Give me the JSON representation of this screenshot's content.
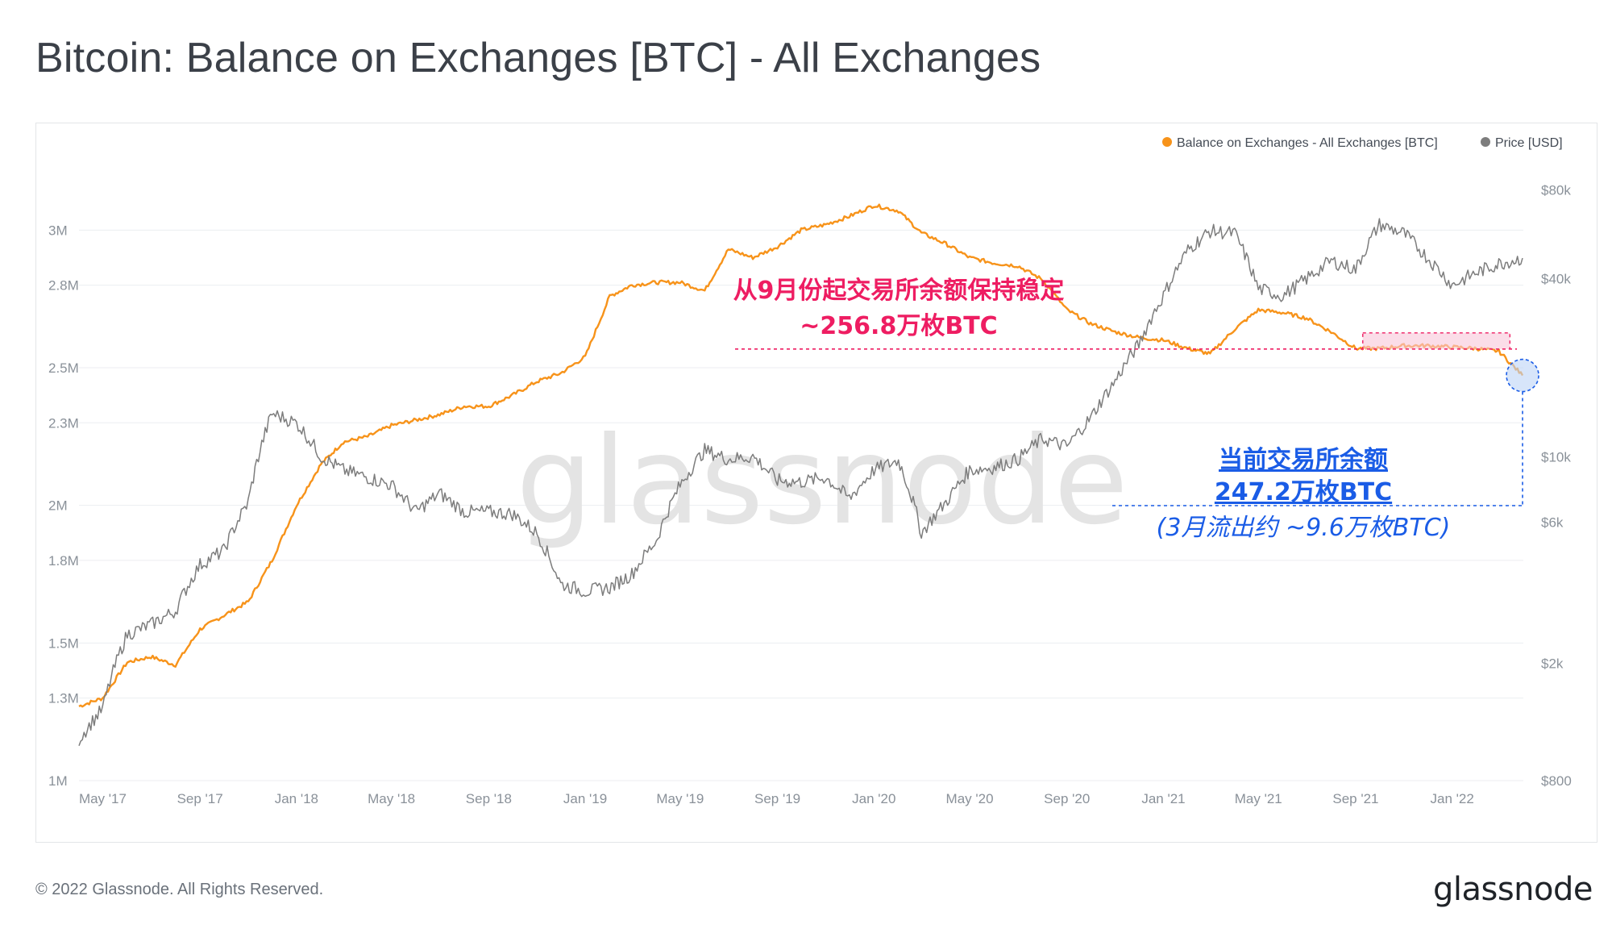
{
  "title": "Bitcoin: Balance on Exchanges [BTC] - All Exchanges",
  "footer": "© 2022 Glassnode. All Rights Reserved.",
  "brand": "glassnode",
  "watermark": "glassnode",
  "legend": [
    {
      "label": "Balance on Exchanges - All Exchanges [BTC]",
      "color": "#f7931a"
    },
    {
      "label": "Price [USD]",
      "color": "#7d7d7d"
    }
  ],
  "annotations": {
    "red_line1": "从9月份起交易所余额保持稳定",
    "red_line2": "~256.8万枚BTC",
    "blue_line1": "当前交易所余额",
    "blue_line2": "247.2万枚BTC",
    "blue_line3": "(3月流出约 ~9.6万枚BTC)",
    "red_color": "#ee1d62",
    "blue_color": "#1a5ce6"
  },
  "chart_data": {
    "type": "line",
    "x_tick_labels": [
      "May '17",
      "Sep '17",
      "Jan '18",
      "May '18",
      "Sep '18",
      "Jan '19",
      "May '19",
      "Sep '19",
      "Jan '20",
      "May '20",
      "Sep '20",
      "Jan '21",
      "May '21",
      "Sep '21",
      "Jan '22"
    ],
    "y_left_tick_labels": [
      "1M",
      "1.3M",
      "1.5M",
      "1.8M",
      "2M",
      "2.3M",
      "2.5M",
      "2.8M",
      "3M"
    ],
    "y_right_tick_labels": [
      "$800",
      "$2k",
      "$6k",
      "$10k",
      "$40k",
      "$80k"
    ],
    "y_left_range": [
      1000000,
      3250000
    ],
    "y_right_scale": "log",
    "y_right_range": [
      800,
      100000
    ],
    "series": [
      {
        "name": "Balance on Exchanges - All Exchanges [BTC]",
        "axis": "left",
        "color": "#f7931a",
        "x": [
          "2017-04-01",
          "2017-05-01",
          "2017-06-01",
          "2017-07-01",
          "2017-08-01",
          "2017-09-01",
          "2017-10-01",
          "2017-11-01",
          "2017-12-01",
          "2018-01-01",
          "2018-02-01",
          "2018-03-01",
          "2018-04-01",
          "2018-05-01",
          "2018-06-01",
          "2018-07-01",
          "2018-08-01",
          "2018-09-01",
          "2018-10-01",
          "2018-11-01",
          "2018-12-01",
          "2019-01-01",
          "2019-02-01",
          "2019-03-01",
          "2019-04-01",
          "2019-05-01",
          "2019-06-01",
          "2019-07-01",
          "2019-08-01",
          "2019-09-01",
          "2019-10-01",
          "2019-11-01",
          "2019-12-01",
          "2020-01-01",
          "2020-02-01",
          "2020-03-01",
          "2020-04-01",
          "2020-05-01",
          "2020-06-01",
          "2020-07-01",
          "2020-08-01",
          "2020-09-01",
          "2020-10-01",
          "2020-11-01",
          "2020-12-01",
          "2021-01-01",
          "2021-02-01",
          "2021-03-01",
          "2021-04-01",
          "2021-05-01",
          "2021-06-01",
          "2021-07-01",
          "2021-08-01",
          "2021-09-01",
          "2021-10-01",
          "2021-11-01",
          "2021-12-01",
          "2022-01-01",
          "2022-02-01",
          "2022-03-01",
          "2022-03-31"
        ],
        "values": [
          1270000,
          1300000,
          1430000,
          1450000,
          1420000,
          1550000,
          1600000,
          1650000,
          1800000,
          2000000,
          2150000,
          2230000,
          2250000,
          2290000,
          2310000,
          2330000,
          2360000,
          2360000,
          2400000,
          2450000,
          2480000,
          2540000,
          2760000,
          2800000,
          2810000,
          2810000,
          2780000,
          2930000,
          2900000,
          2940000,
          3000000,
          3020000,
          3050000,
          3090000,
          3070000,
          2990000,
          2950000,
          2900000,
          2880000,
          2870000,
          2820000,
          2710000,
          2660000,
          2630000,
          2610000,
          2600000,
          2570000,
          2550000,
          2640000,
          2710000,
          2700000,
          2680000,
          2630000,
          2570000,
          2570000,
          2580000,
          2580000,
          2575000,
          2570000,
          2560000,
          2472000
        ]
      },
      {
        "name": "Price [USD]",
        "axis": "right",
        "color": "#7d7d7d",
        "x": [
          "2017-04-01",
          "2017-05-01",
          "2017-06-01",
          "2017-07-01",
          "2017-08-01",
          "2017-09-01",
          "2017-10-01",
          "2017-11-01",
          "2017-12-01",
          "2018-01-01",
          "2018-02-01",
          "2018-03-01",
          "2018-04-01",
          "2018-05-01",
          "2018-06-01",
          "2018-07-01",
          "2018-08-01",
          "2018-09-01",
          "2018-10-01",
          "2018-11-01",
          "2018-12-01",
          "2019-01-01",
          "2019-02-01",
          "2019-03-01",
          "2019-04-01",
          "2019-05-01",
          "2019-06-01",
          "2019-07-01",
          "2019-08-01",
          "2019-09-01",
          "2019-10-01",
          "2019-11-01",
          "2019-12-01",
          "2020-01-01",
          "2020-02-01",
          "2020-03-01",
          "2020-04-01",
          "2020-05-01",
          "2020-06-01",
          "2020-07-01",
          "2020-08-01",
          "2020-09-01",
          "2020-10-01",
          "2020-11-01",
          "2020-12-01",
          "2021-01-01",
          "2021-02-01",
          "2021-03-01",
          "2021-04-01",
          "2021-05-01",
          "2021-06-01",
          "2021-07-01",
          "2021-08-01",
          "2021-09-01",
          "2021-10-01",
          "2021-11-01",
          "2021-12-01",
          "2022-01-01",
          "2022-02-01",
          "2022-03-01",
          "2022-03-31"
        ],
        "values": [
          1100,
          1400,
          2500,
          2700,
          3000,
          4300,
          4800,
          7000,
          14000,
          13000,
          10000,
          9000,
          8500,
          8000,
          6500,
          7500,
          6500,
          6500,
          6400,
          5500,
          3700,
          3500,
          3600,
          4000,
          5200,
          8000,
          10500,
          9800,
          10000,
          8300,
          8200,
          8500,
          7200,
          9000,
          9700,
          5500,
          7000,
          9000,
          9200,
          9800,
          11500,
          10800,
          13500,
          18000,
          24000,
          35000,
          50000,
          58000,
          57000,
          37000,
          35000,
          40000,
          46000,
          43000,
          61000,
          57000,
          47000,
          38000,
          42000,
          45000,
          47000
        ]
      }
    ]
  }
}
